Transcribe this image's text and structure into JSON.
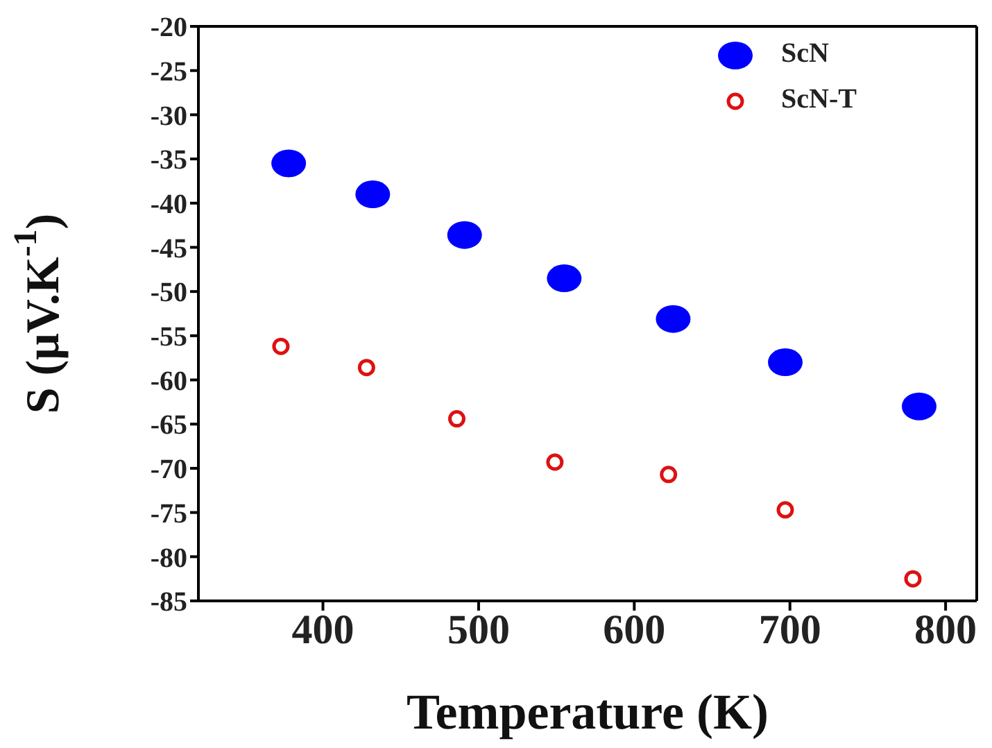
{
  "chart_data": {
    "type": "scatter",
    "xlabel": "Temperature (K)",
    "ylabel": "S (μV.K$^{-1}$)",
    "xlim": [
      320,
      820
    ],
    "xticks": [
      400,
      500,
      600,
      700,
      800
    ],
    "ylim": [
      -85,
      -20
    ],
    "yticks": [
      -85,
      -80,
      -75,
      -70,
      -65,
      -60,
      -55,
      -50,
      -45,
      -40,
      -35,
      -30,
      -25,
      -20
    ],
    "legend": "top right",
    "marker": "circle",
    "series": [
      {
        "name": "ScN",
        "color": "#0000ff",
        "x": [
          378,
          432,
          491,
          555,
          625,
          697,
          783
        ],
        "values": [
          -35.5,
          -39.0,
          -43.6,
          -48.5,
          -53.1,
          -58.0,
          -63.0
        ]
      },
      {
        "name": "ScN-T",
        "color": "#dd1111",
        "x": [
          373,
          428,
          486,
          549,
          622,
          697,
          779
        ],
        "values": [
          -56.2,
          -58.6,
          -64.4,
          -69.3,
          -70.7,
          -74.7,
          -82.5
        ]
      }
    ]
  }
}
